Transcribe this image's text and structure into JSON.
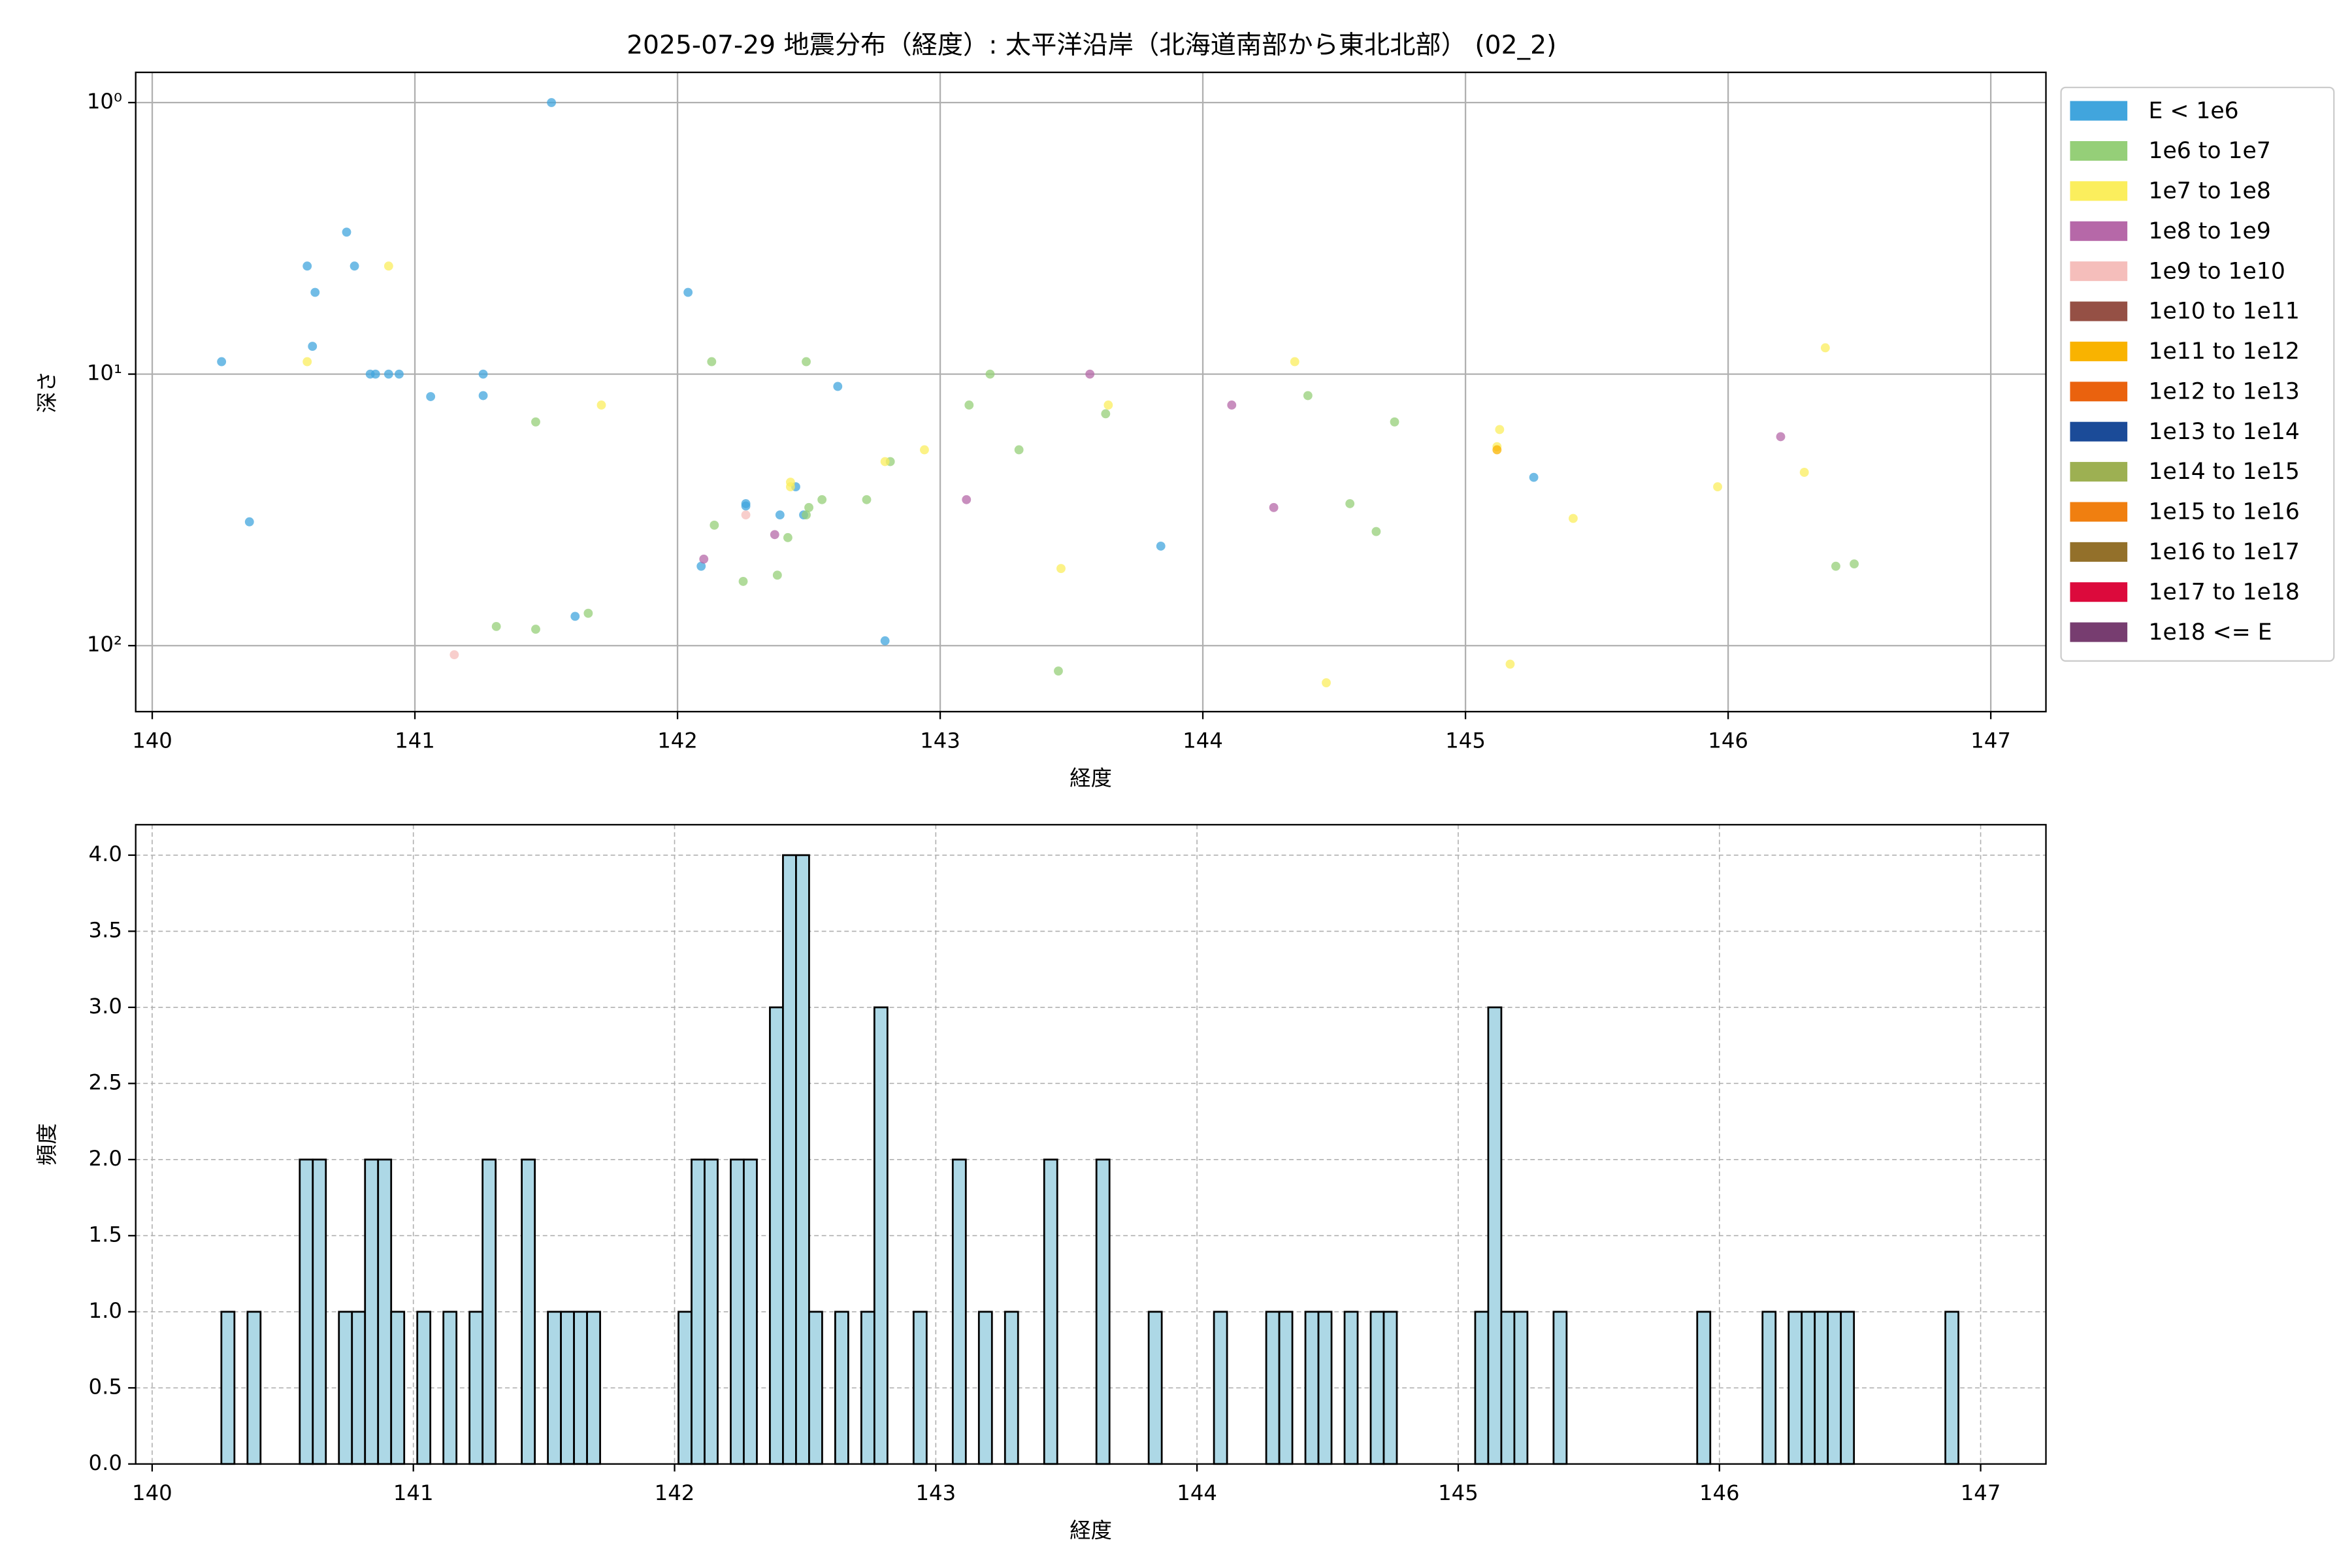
{
  "chart_data": [
    {
      "type": "scatter",
      "title": "2025-07-29 地震分布（経度）: 太平洋沿岸（北海道南部から東北北部） (02_2)",
      "xlabel": "経度",
      "ylabel": "深さ",
      "xlim": [
        139.937,
        147.21
      ],
      "xticks": [
        140,
        141,
        142,
        143,
        144,
        145,
        146,
        147
      ],
      "ylim": [
        175,
        0.774
      ],
      "yscale": "log",
      "yticks": [
        {
          "value": 1,
          "label": "10⁰"
        },
        {
          "value": 10,
          "label": "10¹"
        },
        {
          "value": 100,
          "label": "10²"
        }
      ],
      "grid": true,
      "legend": "outside",
      "series": [
        {
          "name": "E < 1e6",
          "color": "#41a5dd",
          "x": [
            140.264,
            140.37,
            140.59,
            140.62,
            140.74,
            140.77,
            140.61,
            140.83,
            140.85,
            140.9,
            140.94,
            141.06,
            141.26,
            141.26,
            141.52,
            141.61,
            142.04,
            142.09,
            142.26,
            142.26,
            142.39,
            142.45,
            142.48,
            142.61,
            142.79,
            143.84,
            145.26
          ],
          "values": [
            9.0,
            35,
            4.0,
            5.0,
            3.0,
            4.0,
            7.9,
            10,
            10,
            10,
            10,
            12.1,
            10,
            12,
            1.0,
            78,
            5.0,
            51,
            30,
            30.6,
            33,
            26,
            33,
            11.1,
            96,
            43,
            24
          ]
        },
        {
          "name": "1e6 to 1e7",
          "color": "#95cf78",
          "x": [
            142.13,
            141.46,
            141.31,
            141.46,
            141.66,
            142.14,
            142.25,
            142.38,
            142.42,
            142.49,
            142.5,
            142.49,
            142.55,
            142.72,
            142.81,
            143.11,
            143.19,
            143.3,
            143.45,
            143.63,
            144.4,
            144.56,
            144.66,
            144.73,
            146.41,
            146.48
          ],
          "values": [
            9.0,
            15,
            85,
            87,
            76,
            36,
            58,
            55,
            40,
            9.0,
            31,
            33,
            29,
            29,
            21,
            13,
            10,
            19,
            124,
            14,
            12,
            30,
            38,
            15,
            51,
            50
          ]
        },
        {
          "name": "1e7 to 1e8",
          "color": "#fbee5d",
          "x": [
            140.59,
            140.9,
            141.71,
            142.43,
            142.43,
            142.79,
            142.94,
            143.46,
            143.64,
            144.35,
            144.47,
            145.13,
            145.12,
            145.17,
            145.41,
            145.96,
            146.29,
            146.37
          ],
          "values": [
            9.0,
            4.0,
            13,
            25,
            26,
            21,
            19,
            52,
            13,
            9.0,
            137,
            16,
            18.5,
            117,
            34,
            26,
            23,
            8.0
          ]
        },
        {
          "name": "1e8 to 1e9",
          "color": "#b668a8",
          "x": [
            142.1,
            142.37,
            143.1,
            143.57,
            144.11,
            144.27,
            146.2
          ],
          "values": [
            48,
            39,
            29,
            10,
            13,
            31,
            17
          ]
        },
        {
          "name": "1e9 to 1e10",
          "color": "#f5bebb",
          "x": [
            141.15,
            142.26
          ],
          "values": [
            108,
            33
          ]
        },
        {
          "name": "1e10 to 1e11",
          "color": "#955045",
          "x": [],
          "values": []
        },
        {
          "name": "1e11 to 1e12",
          "color": "#f9b300",
          "x": [
            145.12
          ],
          "values": [
            19
          ]
        },
        {
          "name": "1e12 to 1e13",
          "color": "#ea620e",
          "x": [],
          "values": []
        },
        {
          "name": "1e13 to 1e14",
          "color": "#1b4b98",
          "x": [],
          "values": []
        },
        {
          "name": "1e14 to 1e15",
          "color": "#9db052",
          "x": [],
          "values": []
        },
        {
          "name": "1e15 to 1e16",
          "color": "#f07f10",
          "x": [],
          "values": []
        },
        {
          "name": "1e16 to 1e17",
          "color": "#93702a",
          "x": [],
          "values": []
        },
        {
          "name": "1e17 to 1e18",
          "color": "#dc0a3c",
          "x": [],
          "values": []
        },
        {
          "name": "1e18 <= E",
          "color": "#773d70",
          "x": [],
          "values": []
        }
      ]
    },
    {
      "type": "histogram",
      "xlabel": "経度",
      "ylabel": "頻度",
      "xlim": [
        139.937,
        147.25
      ],
      "xticks": [
        140,
        141,
        142,
        143,
        144,
        145,
        146,
        147
      ],
      "ylim": [
        0,
        4.2
      ],
      "yticks": [
        {
          "value": 0,
          "label": "0.0"
        },
        0.5,
        {
          "value": 1,
          "label": "1.0"
        },
        1.5,
        {
          "value": 2,
          "label": "2.0"
        },
        2.5,
        {
          "value": 3,
          "label": "3.0"
        },
        3.5,
        {
          "value": 4,
          "label": "4.0"
        }
      ],
      "grid": true,
      "color": "#add8e6",
      "edgecolor": "#000000",
      "bins": [
        140.265,
        140.315,
        140.365,
        140.415,
        140.465,
        140.515,
        140.565,
        140.615,
        140.665,
        140.715,
        140.765,
        140.815,
        140.865,
        140.915,
        140.965,
        141.015,
        141.065,
        141.115,
        141.165,
        141.215,
        141.265,
        141.315,
        141.365,
        141.415,
        141.465,
        141.515,
        141.565,
        141.615,
        141.665,
        141.715,
        141.765,
        141.815,
        141.865,
        141.915,
        141.965,
        142.015,
        142.065,
        142.115,
        142.165,
        142.215,
        142.265,
        142.315,
        142.365,
        142.415,
        142.465,
        142.515,
        142.565,
        142.615,
        142.665,
        142.715,
        142.765,
        142.815,
        142.865,
        142.915,
        142.965,
        143.015,
        143.065,
        143.115,
        143.165,
        143.215,
        143.265,
        143.315,
        143.365,
        143.415,
        143.465,
        143.515,
        143.565,
        143.615,
        143.665,
        143.715,
        143.765,
        143.815,
        143.865,
        143.915,
        143.965,
        144.015,
        144.065,
        144.115,
        144.165,
        144.215,
        144.265,
        144.315,
        144.365,
        144.415,
        144.465,
        144.515,
        144.565,
        144.615,
        144.665,
        144.715,
        144.765,
        144.815,
        144.865,
        144.915,
        144.965,
        145.015,
        145.065,
        145.115,
        145.165,
        145.215,
        145.265,
        145.315,
        145.365,
        145.415,
        145.465,
        145.515,
        145.565,
        145.615,
        145.665,
        145.715,
        145.765,
        145.815,
        145.865,
        145.915,
        145.965,
        146.015,
        146.065,
        146.115,
        146.165,
        146.215,
        146.265,
        146.315,
        146.365,
        146.415,
        146.465,
        146.515,
        146.565,
        146.615,
        146.665,
        146.715,
        146.765,
        146.815,
        146.865,
        146.915
      ],
      "values": [
        1,
        0,
        1,
        0,
        0,
        0,
        2,
        2,
        0,
        1,
        1,
        2,
        2,
        1,
        0,
        1,
        0,
        1,
        0,
        1,
        2,
        0,
        0,
        2,
        0,
        1,
        1,
        1,
        1,
        0,
        0,
        0,
        0,
        0,
        0,
        1,
        2,
        2,
        0,
        2,
        2,
        0,
        3,
        4,
        4,
        1,
        0,
        1,
        0,
        1,
        3,
        0,
        0,
        1,
        0,
        0,
        2,
        0,
        1,
        0,
        1,
        0,
        0,
        2,
        0,
        0,
        0,
        2,
        0,
        0,
        0,
        1,
        0,
        0,
        0,
        0,
        1,
        0,
        0,
        0,
        1,
        1,
        0,
        1,
        1,
        0,
        1,
        0,
        1,
        1,
        0,
        0,
        0,
        0,
        0,
        0,
        1,
        3,
        1,
        1,
        0,
        0,
        1,
        0,
        0,
        0,
        0,
        0,
        0,
        0,
        0,
        0,
        0,
        1,
        0,
        0,
        0,
        0,
        1,
        0,
        1,
        1,
        1,
        1,
        1,
        0,
        0,
        0,
        0,
        0,
        0,
        0,
        1
      ]
    }
  ]
}
